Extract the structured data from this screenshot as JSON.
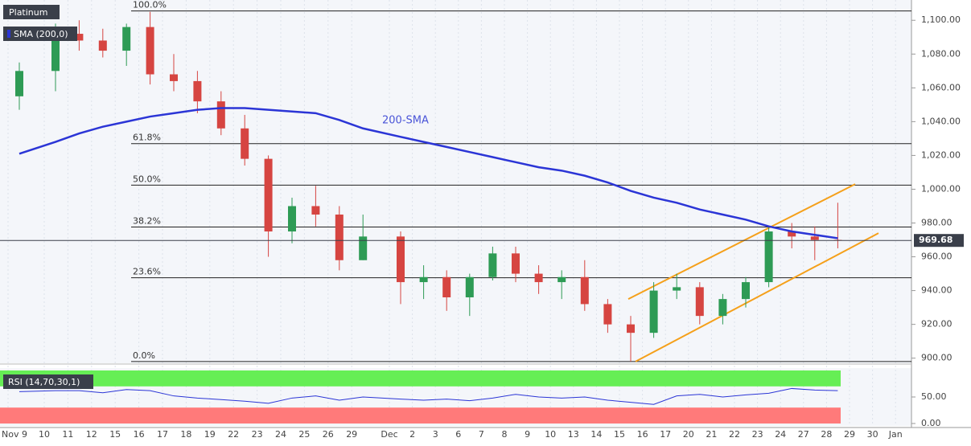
{
  "chart_data": {
    "type": "candlestick",
    "title": "Platinum",
    "indicator_label": "SMA (200,0)",
    "categories": [
      "Nov 9",
      "10",
      "11",
      "12",
      "15",
      "16",
      "17",
      "18",
      "19",
      "22",
      "23",
      "24",
      "25",
      "26",
      "29",
      "Dec",
      "2",
      "3",
      "6",
      "7",
      "8",
      "9",
      "10",
      "13",
      "14",
      "15",
      "16",
      "17",
      "20",
      "21",
      "22",
      "23",
      "24",
      "27",
      "28",
      "29",
      "30",
      "Jan"
    ],
    "open": [
      1055,
      1070,
      1092,
      1088,
      1082,
      1096,
      1068,
      1064,
      1052,
      1036,
      1018,
      975,
      990,
      985,
      958,
      972,
      945,
      948,
      936,
      948,
      962,
      950,
      945,
      948,
      932,
      920,
      915,
      940,
      942,
      925,
      935,
      945,
      975,
      972,
      970,
      null,
      null,
      null
    ],
    "high": [
      1075,
      1098,
      1100,
      1095,
      1098,
      1105,
      1080,
      1070,
      1058,
      1044,
      1020,
      995,
      1002,
      990,
      985,
      975,
      955,
      952,
      950,
      966,
      966,
      955,
      952,
      958,
      935,
      925,
      945,
      950,
      945,
      938,
      948,
      978,
      980,
      978,
      992,
      null,
      null,
      null
    ],
    "low": [
      1047,
      1058,
      1082,
      1078,
      1073,
      1062,
      1058,
      1045,
      1032,
      1014,
      960,
      968,
      978,
      952,
      958,
      932,
      935,
      928,
      925,
      946,
      945,
      938,
      935,
      928,
      915,
      898,
      912,
      935,
      920,
      920,
      930,
      942,
      965,
      958,
      965,
      null,
      null,
      null
    ],
    "close": [
      1070,
      1092,
      1088,
      1082,
      1096,
      1068,
      1064,
      1052,
      1036,
      1018,
      975,
      990,
      985,
      958,
      972,
      945,
      948,
      936,
      948,
      962,
      950,
      945,
      948,
      932,
      920,
      915,
      940,
      942,
      925,
      935,
      945,
      975,
      972,
      970,
      969.68,
      null,
      null,
      null
    ],
    "up_color": "#2e9b55",
    "down_color": "#d64541",
    "sma": {
      "name": "200-SMA",
      "color": "#2b35d6",
      "values": [
        1021,
        1028,
        1033,
        1037,
        1040,
        1043,
        1045,
        1047,
        1048,
        1048,
        1047,
        1046,
        1045,
        1041,
        1036,
        1031,
        1028,
        1025,
        1022,
        1019,
        1016,
        1013,
        1011,
        1008,
        1004,
        999,
        995,
        992,
        988,
        985,
        982,
        978,
        975,
        973,
        971,
        null,
        null,
        null
      ]
    },
    "ylim": [
      897,
      1112
    ],
    "yticks": [
      {
        "value": 900,
        "label": "900.00"
      },
      {
        "value": 920,
        "label": "920.00"
      },
      {
        "value": 940,
        "label": "940.00"
      },
      {
        "value": 960,
        "label": "960.00"
      },
      {
        "value": 980,
        "label": "980.00"
      },
      {
        "value": 1000,
        "label": "1,000.00"
      },
      {
        "value": 1020,
        "label": "1,020.00"
      },
      {
        "value": 1040,
        "label": "1,040.00"
      },
      {
        "value": 1060,
        "label": "1,060.00"
      },
      {
        "value": 1080,
        "label": "1,080.00"
      },
      {
        "value": 1100,
        "label": "1,100.00"
      }
    ],
    "last_price": 969.68,
    "fib_levels": [
      {
        "label": "100.0%",
        "value": 1105.5
      },
      {
        "label": "61.8%",
        "value": 1027
      },
      {
        "label": "50.0%",
        "value": 1002.4
      },
      {
        "label": "38.2%",
        "value": 977.6
      },
      {
        "label": "23.6%",
        "value": 947.6
      },
      {
        "label": "0.0%",
        "value": 898
      }
    ],
    "channel": {
      "color": "#f5a01a",
      "upper": [
        935,
        1003
      ],
      "lower": [
        898,
        974
      ]
    },
    "rsi": {
      "name": "RSI (14,70,30,1)",
      "color": "#2b35d6",
      "values": [
        60,
        62,
        62,
        58,
        64,
        62,
        52,
        48,
        45,
        42,
        38,
        48,
        52,
        44,
        50,
        46,
        44,
        46,
        43,
        48,
        55,
        50,
        48,
        50,
        44,
        40,
        36,
        52,
        55,
        50,
        54,
        57,
        66,
        63,
        62,
        null,
        null,
        null
      ],
      "ylim": [
        0,
        100
      ],
      "yticks": [
        {
          "value": 50,
          "label": "50.00"
        },
        {
          "value": 0,
          "label": "0.00"
        }
      ],
      "overbought": 70,
      "oversold": 30
    }
  }
}
